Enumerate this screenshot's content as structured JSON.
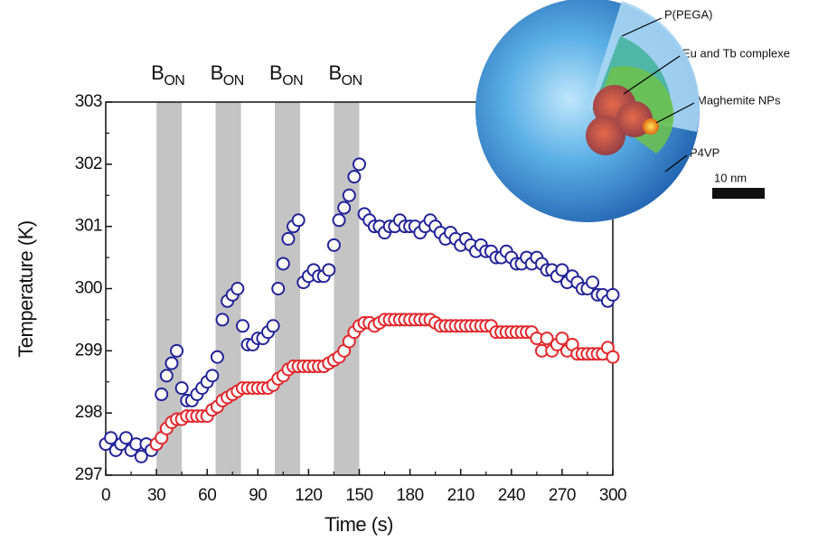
{
  "chart_data": {
    "type": "scatter",
    "xlabel": "Time (s)",
    "ylabel": "Temperature (K)",
    "xlim": [
      0,
      300
    ],
    "ylim": [
      297,
      303
    ],
    "xticks": [
      0,
      30,
      60,
      90,
      120,
      150,
      180,
      210,
      240,
      270,
      300
    ],
    "yticks": [
      297,
      298,
      299,
      300,
      301,
      302,
      303
    ],
    "grid": false,
    "band_color": "#c4c4c4",
    "bands": [
      {
        "start": 30,
        "end": 45,
        "label": "B",
        "sub": "ON"
      },
      {
        "start": 65,
        "end": 80,
        "label": "B",
        "sub": "ON"
      },
      {
        "start": 100,
        "end": 115,
        "label": "B",
        "sub": "ON"
      },
      {
        "start": 135,
        "end": 150,
        "label": "B",
        "sub": "ON"
      }
    ],
    "series": [
      {
        "color": "#23239a",
        "x": [
          0,
          3,
          6,
          9,
          12,
          15,
          18,
          21,
          24,
          27,
          30,
          33,
          36,
          39,
          42,
          45,
          48,
          51,
          54,
          57,
          60,
          63,
          66,
          69,
          72,
          75,
          78,
          81,
          84,
          87,
          90,
          93,
          96,
          99,
          102,
          105,
          108,
          111,
          114,
          117,
          120,
          123,
          126,
          129,
          132,
          135,
          138,
          141,
          144,
          147,
          150,
          153,
          156,
          159,
          162,
          165,
          168,
          171,
          174,
          177,
          180,
          183,
          186,
          189,
          192,
          195,
          198,
          201,
          204,
          207,
          210,
          213,
          216,
          219,
          222,
          225,
          228,
          231,
          234,
          237,
          240,
          243,
          246,
          249,
          252,
          255,
          258,
          261,
          264,
          267,
          270,
          273,
          276,
          279,
          282,
          285,
          288,
          291,
          294,
          297,
          300
        ],
        "values": [
          297.5,
          297.6,
          297.4,
          297.5,
          297.6,
          297.4,
          297.5,
          297.3,
          297.5,
          297.4,
          297.5,
          298.3,
          298.6,
          298.8,
          299.0,
          298.4,
          298.2,
          298.2,
          298.3,
          298.4,
          298.5,
          298.6,
          298.9,
          299.5,
          299.8,
          299.9,
          300.0,
          299.4,
          299.1,
          299.1,
          299.2,
          299.2,
          299.3,
          299.4,
          300.0,
          300.4,
          300.8,
          301.0,
          301.1,
          300.1,
          300.2,
          300.3,
          300.2,
          300.2,
          300.3,
          300.7,
          301.1,
          301.3,
          301.5,
          301.8,
          302.0,
          301.2,
          301.1,
          301.0,
          301.0,
          300.9,
          301.0,
          301.0,
          301.1,
          301.0,
          301.0,
          301.0,
          300.9,
          301.0,
          301.1,
          301.0,
          300.9,
          300.8,
          300.9,
          300.8,
          300.7,
          300.8,
          300.7,
          300.6,
          300.7,
          300.6,
          300.6,
          300.5,
          300.5,
          300.6,
          300.5,
          300.4,
          300.4,
          300.5,
          300.4,
          300.5,
          300.4,
          300.3,
          300.3,
          300.2,
          300.3,
          300.1,
          300.2,
          300.1,
          300.0,
          300.0,
          300.1,
          299.9,
          299.9,
          299.8,
          299.9
        ]
      },
      {
        "color": "#e3262b",
        "x": [
          30,
          33,
          36,
          39,
          42,
          45,
          48,
          51,
          54,
          57,
          60,
          63,
          66,
          69,
          72,
          75,
          78,
          81,
          84,
          87,
          90,
          93,
          96,
          99,
          102,
          105,
          108,
          111,
          114,
          117,
          120,
          123,
          126,
          129,
          132,
          135,
          138,
          141,
          144,
          147,
          150,
          153,
          156,
          159,
          162,
          165,
          168,
          171,
          174,
          177,
          180,
          183,
          186,
          189,
          192,
          195,
          198,
          201,
          204,
          207,
          210,
          213,
          216,
          219,
          222,
          225,
          228,
          231,
          234,
          237,
          240,
          243,
          246,
          249,
          252,
          255,
          258,
          261,
          264,
          267,
          270,
          273,
          276,
          279,
          282,
          285,
          288,
          291,
          294,
          297,
          300
        ],
        "values": [
          297.5,
          297.6,
          297.75,
          297.85,
          297.9,
          297.9,
          297.95,
          297.95,
          297.95,
          297.95,
          297.95,
          298.05,
          298.1,
          298.2,
          298.25,
          298.3,
          298.35,
          298.4,
          298.4,
          298.4,
          298.4,
          298.4,
          298.4,
          298.45,
          298.55,
          298.6,
          298.7,
          298.75,
          298.75,
          298.75,
          298.75,
          298.75,
          298.75,
          298.75,
          298.8,
          298.85,
          298.9,
          299.0,
          299.15,
          299.3,
          299.4,
          299.45,
          299.45,
          299.4,
          299.45,
          299.5,
          299.5,
          299.5,
          299.5,
          299.5,
          299.5,
          299.5,
          299.5,
          299.5,
          299.5,
          299.45,
          299.4,
          299.4,
          299.4,
          299.4,
          299.4,
          299.4,
          299.4,
          299.4,
          299.4,
          299.4,
          299.4,
          299.3,
          299.3,
          299.3,
          299.3,
          299.3,
          299.3,
          299.3,
          299.3,
          299.2,
          299.0,
          299.2,
          299.0,
          299.1,
          299.2,
          299.0,
          299.1,
          298.95,
          298.95,
          298.95,
          298.95,
          298.95,
          298.95,
          299.05,
          298.9
        ]
      }
    ],
    "inset_labels": [
      "P(PEGA)",
      "Eu and Tb complexe",
      "Maghemite NPs",
      "P4VP"
    ],
    "scale_bar": "10 nm"
  }
}
